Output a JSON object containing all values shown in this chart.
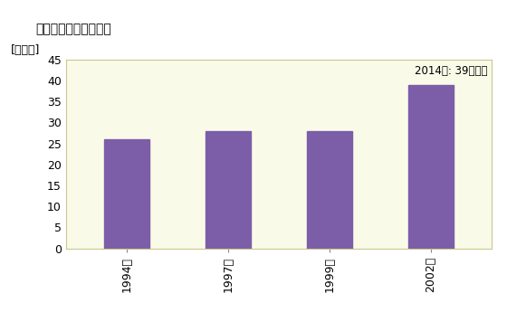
{
  "title": "商業の事業所数の推移",
  "ylabel": "[事業所]",
  "categories": [
    "1994年",
    "1997年",
    "1999年",
    "2002年"
  ],
  "values": [
    26,
    28,
    28,
    39
  ],
  "bar_color": "#7B5EA7",
  "ylim": [
    0,
    45
  ],
  "yticks": [
    0,
    5,
    10,
    15,
    20,
    25,
    30,
    35,
    40,
    45
  ],
  "annotation": "2014年: 39事業所",
  "bg_color": "#ffffff",
  "plot_bg_color": "#fafae8",
  "border_color": "#c8c890"
}
